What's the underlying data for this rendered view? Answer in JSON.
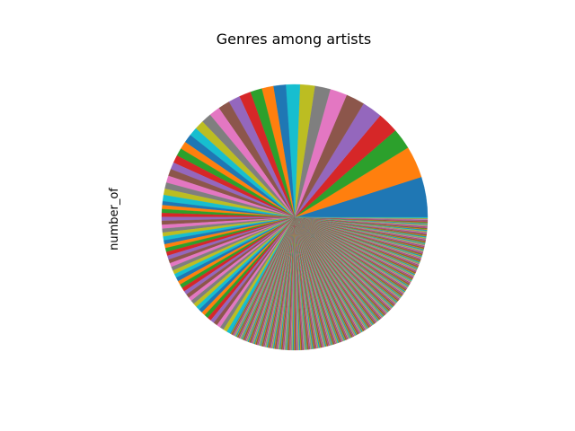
{
  "chart_data": {
    "type": "pie",
    "title": "Genres among artists",
    "ylabel": "number_of",
    "start_angle_deg": 0,
    "direction": "counterclockwise",
    "legend": "none",
    "colors": [
      "#1f77b4",
      "#ff7f0e",
      "#2ca02c",
      "#d62728",
      "#9467bd",
      "#8c564b",
      "#e377c2",
      "#7f7f7f",
      "#bcbd22",
      "#17becf"
    ],
    "top_slices_percent": [
      5.2,
      4.1,
      2.7,
      2.7,
      2.6,
      2.4,
      2.2,
      2.0,
      1.9,
      1.8,
      1.6,
      1.5,
      1.5,
      1.5,
      1.5,
      1.5,
      1.4,
      1.3,
      1.2,
      1.1,
      1.1,
      1.0,
      1.0,
      1.0,
      0.9,
      0.9,
      0.9,
      0.8,
      0.8,
      0.8
    ],
    "medium_slices": {
      "count": 40,
      "percent_each": 0.5
    },
    "tail_slices": {
      "count": 420,
      "percent_each": 0.0833
    }
  }
}
